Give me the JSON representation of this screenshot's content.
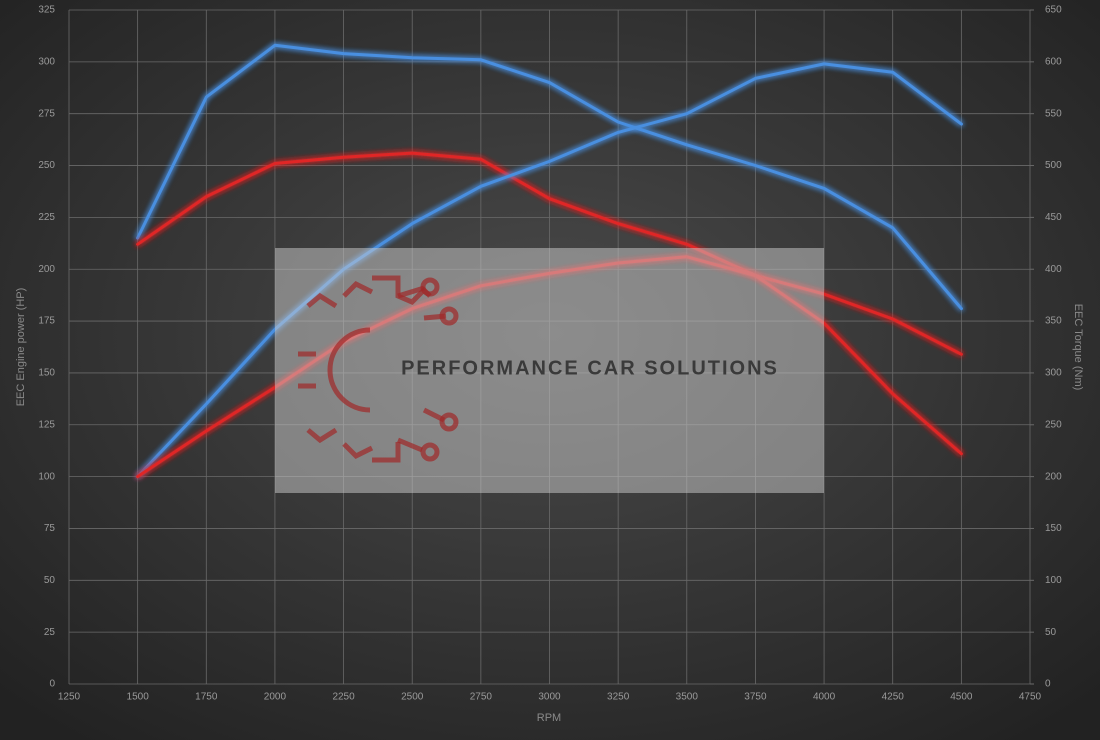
{
  "chart_data": {
    "type": "line",
    "xlabel": "RPM",
    "ylabel": "EEC Engine power (HP)",
    "y2label": "EEC Torque (Nm)",
    "watermark": "PERFORMANCE CAR SOLUTIONS",
    "x": [
      1500,
      1750,
      2000,
      2250,
      2500,
      2750,
      3000,
      3250,
      3500,
      3750,
      4000,
      4250,
      4500
    ],
    "series": [
      {
        "color": "#4a8fe0",
        "axis": "y2",
        "values": [
          430,
          566,
          616,
          608,
          604,
          602,
          580,
          542,
          520,
          500,
          478,
          440,
          362
        ]
      },
      {
        "color": "#e02525",
        "axis": "y2",
        "values": [
          424,
          470,
          502,
          508,
          512,
          506,
          468,
          444,
          424,
          394,
          376,
          352,
          318
        ]
      },
      {
        "color": "#4a8fe0",
        "values": [
          100,
          135,
          171,
          200,
          222,
          240,
          252,
          266,
          275,
          292,
          299,
          295,
          270
        ]
      },
      {
        "color": "#e02525",
        "values": [
          100,
          122,
          143,
          165,
          181,
          192,
          198,
          203,
          206,
          197,
          174,
          140,
          111
        ]
      }
    ],
    "xlim": [
      1250,
      4750
    ],
    "xticks": [
      1250,
      1500,
      1750,
      2000,
      2250,
      2500,
      2750,
      3000,
      3250,
      3500,
      3750,
      4000,
      4250,
      4500,
      4750
    ],
    "ylim": [
      0,
      325
    ],
    "yticks": [
      0,
      25,
      50,
      75,
      100,
      125,
      150,
      175,
      200,
      225,
      250,
      275,
      300,
      325
    ],
    "y2lim": [
      0,
      650
    ],
    "y2ticks": [
      0,
      50,
      100,
      150,
      200,
      250,
      300,
      350,
      400,
      450,
      500,
      550,
      600,
      650
    ],
    "grid": true
  }
}
